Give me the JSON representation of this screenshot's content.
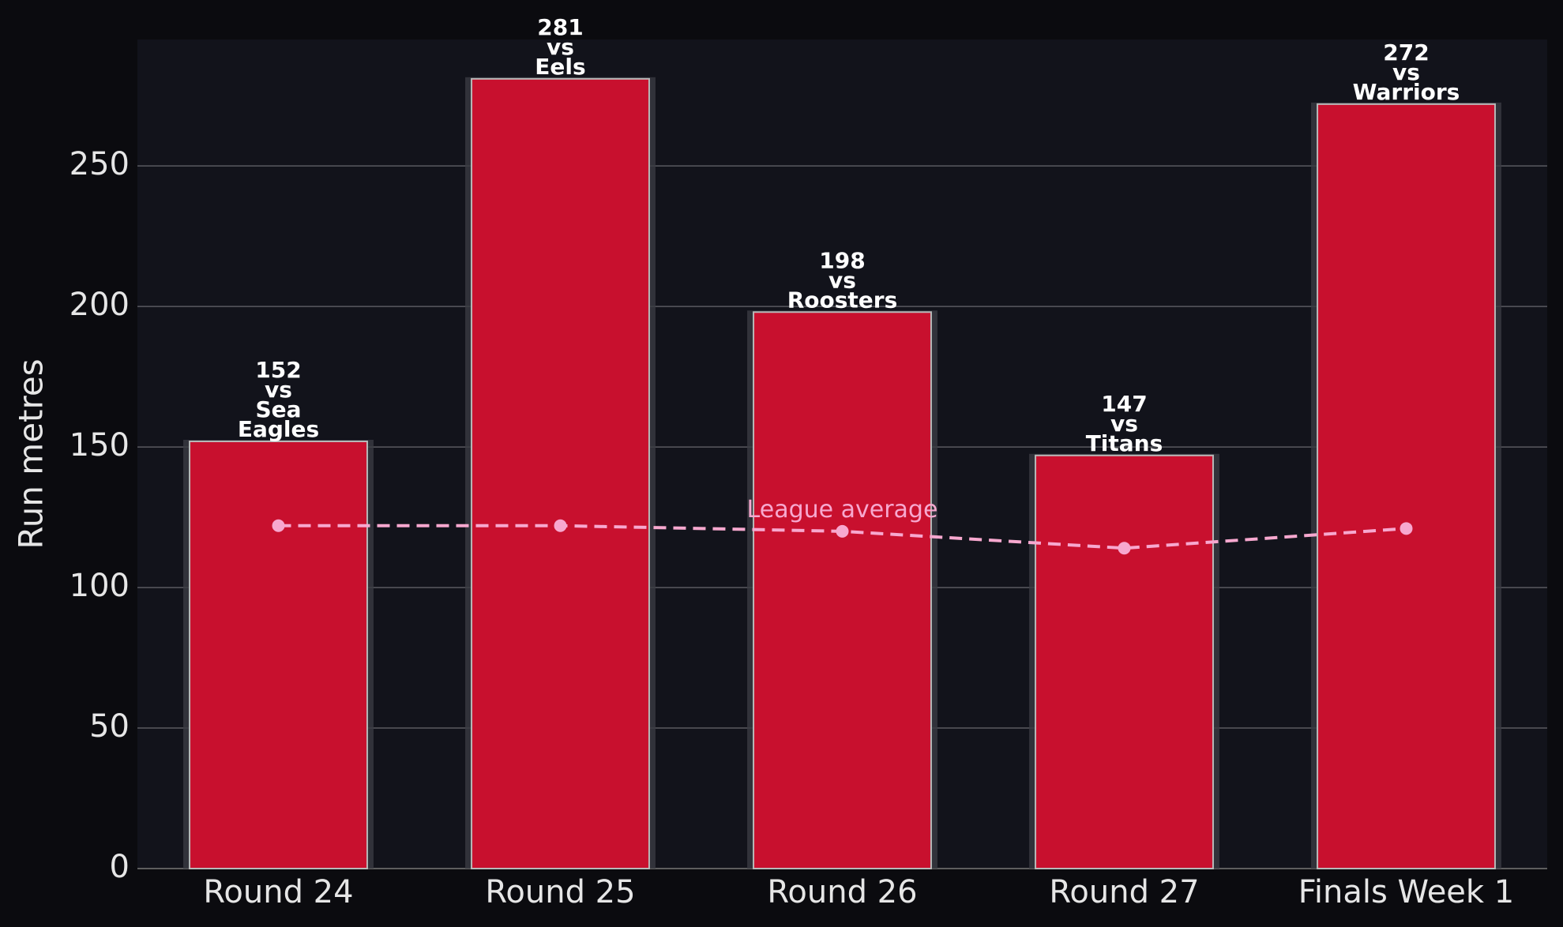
{
  "chart_data": {
    "type": "bar",
    "ylabel": "Run metres",
    "categories": [
      "Round 24",
      "Round 25",
      "Round 26",
      "Round 27",
      "Finals Week 1"
    ],
    "values": [
      152,
      281,
      198,
      147,
      272
    ],
    "value_labels": [
      "152\nvs\nSea\nEagles",
      "281\nvs\nEels",
      "198\nvs\nRoosters",
      "147\nvs\nTitans",
      "272\nvs\nWarriors"
    ],
    "color": "#c8102e",
    "average": {
      "name": "League average",
      "color": "#f7a8cf",
      "values": [
        122,
        122,
        120,
        114,
        121
      ]
    },
    "ylim": [
      0,
      295
    ],
    "yticks": [
      0,
      50,
      100,
      150,
      200,
      250
    ],
    "grid": true
  }
}
